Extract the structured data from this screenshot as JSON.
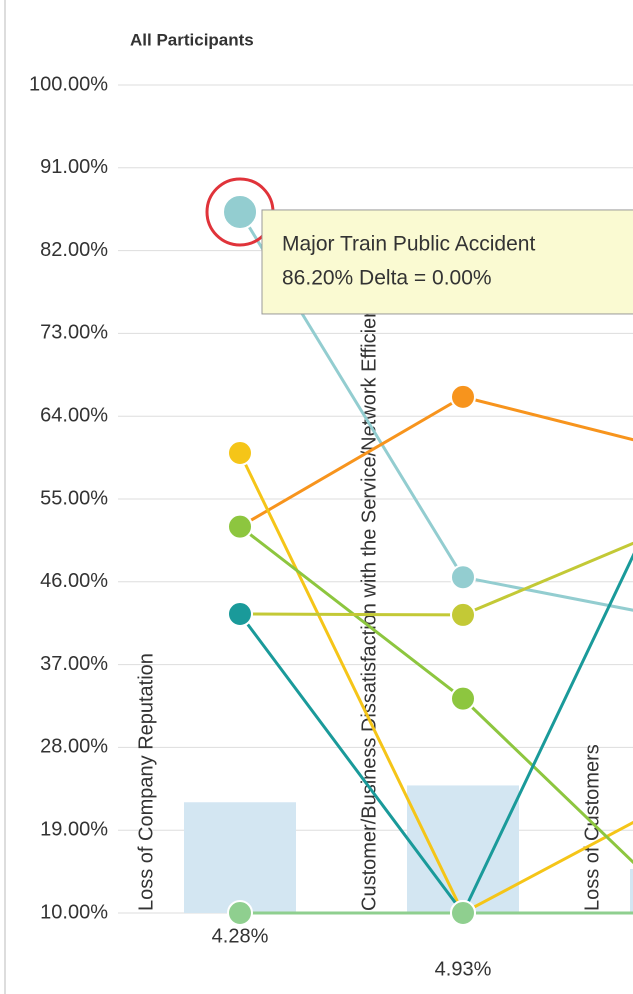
{
  "chart_data": {
    "type": "line",
    "title": "All Participants",
    "categories": [
      "Loss of Company Reputation",
      "Customer/Business Dissatisfaction with the Service/Network Efficiency",
      "Loss of Customers"
    ],
    "ylim": [
      10,
      100
    ],
    "yticks": [
      {
        "value": 10,
        "label": "10.00%"
      },
      {
        "value": 19,
        "label": "19.00%"
      },
      {
        "value": 28,
        "label": "28.00%"
      },
      {
        "value": 37,
        "label": "37.00%"
      },
      {
        "value": 46,
        "label": "46.00%"
      },
      {
        "value": 55,
        "label": "55.00%"
      },
      {
        "value": 64,
        "label": "64.00%"
      },
      {
        "value": 73,
        "label": "73.00%"
      },
      {
        "value": 82,
        "label": "82.00%"
      },
      {
        "value": 91,
        "label": "91.00%"
      },
      {
        "value": 100,
        "label": "100.00%"
      }
    ],
    "grid": true,
    "bars": {
      "color": "#d3e6f2",
      "values": [
        4.28,
        4.93,
        1.7
      ],
      "value_labels": [
        "4.28%",
        "4.93%",
        null
      ],
      "axis": "y2"
    },
    "y2lim": [
      0,
      32
    ],
    "series": [
      {
        "name": "Major Train Public Accident",
        "color": "#93cdd0",
        "values": [
          86.2,
          46.5,
          41.8
        ]
      },
      {
        "color": "#f7941d",
        "values": [
          52,
          66.1,
          60
        ]
      },
      {
        "color": "#f5c518",
        "values": [
          60,
          10,
          22.9
        ]
      },
      {
        "color": "#8dc63f",
        "values": [
          52,
          33.3,
          10
        ]
      },
      {
        "color": "#c3c936",
        "values": [
          42.5,
          42.4,
          52.6
        ]
      },
      {
        "color": "#1a9a9a",
        "values": [
          42.5,
          10,
          60.9
        ]
      },
      {
        "color": "#8fcf8f",
        "values": [
          10,
          10,
          10
        ]
      }
    ],
    "tooltip": {
      "series": 0,
      "point": 0,
      "text": "86.20% Delta = 0.00%"
    }
  }
}
